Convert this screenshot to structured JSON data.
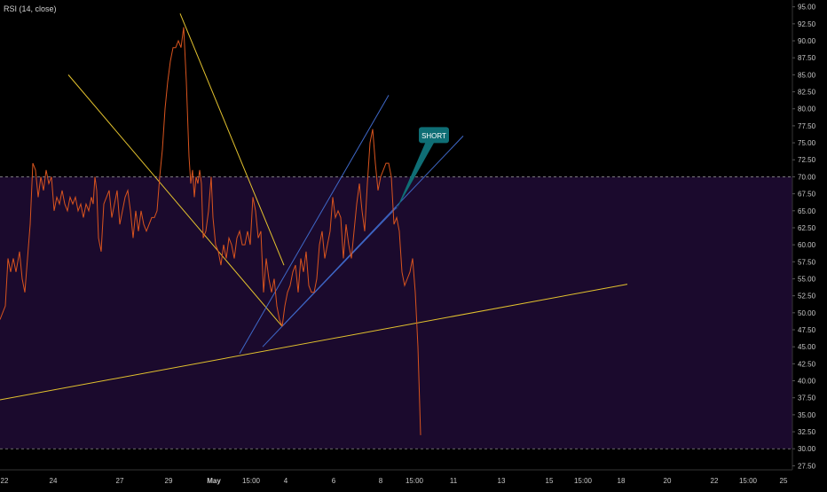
{
  "indicator_label": "RSI (14, close)",
  "annotation_label": "SHORT",
  "colors": {
    "background": "#000000",
    "band_fill": "#1b0a2d",
    "band_line": "#8a8a8a",
    "rsi_line": "#d9541e",
    "yellow_trend": "#e3c22e",
    "blue_trend": "#3f68c8",
    "callout": "#0f6e75",
    "axis_text": "#c8c8c8"
  },
  "chart_data": {
    "type": "line",
    "title": "",
    "xlabel": "",
    "ylabel": "",
    "ylim": [
      26.9,
      96.0
    ],
    "y_ticks": [
      "27.50",
      "30.00",
      "32.50",
      "35.00",
      "37.50",
      "40.00",
      "42.50",
      "45.00",
      "47.50",
      "50.00",
      "52.50",
      "55.00",
      "57.50",
      "60.00",
      "62.50",
      "65.00",
      "67.50",
      "70.00",
      "72.50",
      "75.00",
      "77.50",
      "80.00",
      "82.50",
      "85.00",
      "87.50",
      "90.00",
      "92.50",
      "95.00"
    ],
    "x_range": [
      0,
      932
    ],
    "x_ticks": [
      {
        "x": 5,
        "label": "22"
      },
      {
        "x": 60,
        "label": "24"
      },
      {
        "x": 135,
        "label": "27"
      },
      {
        "x": 190,
        "label": "29"
      },
      {
        "x": 241,
        "label": "May"
      },
      {
        "x": 283,
        "label": "15:00"
      },
      {
        "x": 322,
        "label": "4"
      },
      {
        "x": 376,
        "label": "6"
      },
      {
        "x": 429,
        "label": "8"
      },
      {
        "x": 467,
        "label": "15:00"
      },
      {
        "x": 511,
        "label": "11"
      },
      {
        "x": 565,
        "label": "13"
      },
      {
        "x": 619,
        "label": "15"
      },
      {
        "x": 657,
        "label": "15:00"
      },
      {
        "x": 700,
        "label": "18"
      },
      {
        "x": 752,
        "label": "20"
      },
      {
        "x": 805,
        "label": "22"
      },
      {
        "x": 843,
        "label": "15:00"
      },
      {
        "x": 883,
        "label": "25"
      }
    ],
    "bands": {
      "upper": 70,
      "lower": 30
    },
    "series": [
      {
        "values": [
          [
            0,
            49
          ],
          [
            6,
            51
          ],
          [
            9,
            58
          ],
          [
            12,
            56
          ],
          [
            15,
            58
          ],
          [
            18,
            56
          ],
          [
            22,
            59
          ],
          [
            25,
            55
          ],
          [
            28,
            53
          ],
          [
            31,
            58
          ],
          [
            34,
            63
          ],
          [
            37,
            72
          ],
          [
            40,
            71
          ],
          [
            43,
            67
          ],
          [
            46,
            70
          ],
          [
            49,
            68
          ],
          [
            52,
            71
          ],
          [
            55,
            69
          ],
          [
            58,
            70
          ],
          [
            61,
            65
          ],
          [
            64,
            67
          ],
          [
            67,
            66
          ],
          [
            70,
            68
          ],
          [
            73,
            66
          ],
          [
            76,
            65
          ],
          [
            79,
            67
          ],
          [
            82,
            66
          ],
          [
            85,
            67
          ],
          [
            88,
            65
          ],
          [
            91,
            66
          ],
          [
            94,
            64
          ],
          [
            97,
            66
          ],
          [
            100,
            65
          ],
          [
            103,
            67
          ],
          [
            105,
            66
          ],
          [
            107,
            70
          ],
          [
            109,
            68
          ],
          [
            111,
            61
          ],
          [
            114,
            59
          ],
          [
            117,
            66
          ],
          [
            120,
            67
          ],
          [
            123,
            68
          ],
          [
            126,
            64
          ],
          [
            129,
            66
          ],
          [
            132,
            68
          ],
          [
            135,
            63
          ],
          [
            138,
            65
          ],
          [
            141,
            67
          ],
          [
            144,
            68
          ],
          [
            147,
            65
          ],
          [
            150,
            61
          ],
          [
            153,
            65
          ],
          [
            156,
            62
          ],
          [
            159,
            65
          ],
          [
            162,
            63
          ],
          [
            165,
            62
          ],
          [
            168,
            63
          ],
          [
            171,
            64
          ],
          [
            174,
            64
          ],
          [
            177,
            65
          ],
          [
            180,
            70
          ],
          [
            183,
            74
          ],
          [
            186,
            80
          ],
          [
            189,
            84
          ],
          [
            192,
            87
          ],
          [
            195,
            89
          ],
          [
            198,
            89
          ],
          [
            201,
            90
          ],
          [
            204,
            89
          ],
          [
            207,
            92
          ],
          [
            210,
            84
          ],
          [
            213,
            73
          ],
          [
            215,
            69
          ],
          [
            217,
            71
          ],
          [
            219,
            67
          ],
          [
            221,
            70
          ],
          [
            223,
            69
          ],
          [
            225,
            71
          ],
          [
            227,
            69
          ],
          [
            229,
            61
          ],
          [
            232,
            62
          ],
          [
            235,
            65
          ],
          [
            238,
            70
          ],
          [
            240,
            64
          ],
          [
            243,
            60
          ],
          [
            246,
            59
          ],
          [
            249,
            57
          ],
          [
            252,
            60
          ],
          [
            255,
            58
          ],
          [
            258,
            61
          ],
          [
            261,
            60
          ],
          [
            264,
            58
          ],
          [
            267,
            61
          ],
          [
            270,
            62
          ],
          [
            273,
            60
          ],
          [
            276,
            60
          ],
          [
            279,
            62
          ],
          [
            282,
            60
          ],
          [
            285,
            67
          ],
          [
            288,
            65
          ],
          [
            291,
            61
          ],
          [
            294,
            62
          ],
          [
            297,
            53
          ],
          [
            300,
            58
          ],
          [
            303,
            55
          ],
          [
            306,
            53
          ],
          [
            309,
            55
          ],
          [
            312,
            51
          ],
          [
            315,
            49
          ],
          [
            318,
            48
          ],
          [
            321,
            51
          ],
          [
            324,
            53
          ],
          [
            327,
            54
          ],
          [
            330,
            56
          ],
          [
            333,
            57
          ],
          [
            336,
            53
          ],
          [
            339,
            58
          ],
          [
            342,
            56
          ],
          [
            345,
            59
          ],
          [
            348,
            54
          ],
          [
            351,
            53
          ],
          [
            354,
            53
          ],
          [
            357,
            55
          ],
          [
            360,
            60
          ],
          [
            363,
            62
          ],
          [
            366,
            58
          ],
          [
            369,
            60
          ],
          [
            372,
            62
          ],
          [
            375,
            67
          ],
          [
            378,
            64
          ],
          [
            381,
            65
          ],
          [
            384,
            64
          ],
          [
            387,
            58
          ],
          [
            390,
            63
          ],
          [
            393,
            60
          ],
          [
            396,
            58
          ],
          [
            399,
            62
          ],
          [
            402,
            66
          ],
          [
            405,
            69
          ],
          [
            408,
            65
          ],
          [
            411,
            62
          ],
          [
            414,
            69
          ],
          [
            417,
            75
          ],
          [
            420,
            77
          ],
          [
            423,
            72
          ],
          [
            426,
            68
          ],
          [
            429,
            70
          ],
          [
            432,
            71
          ],
          [
            435,
            72
          ],
          [
            438,
            72
          ],
          [
            441,
            70
          ],
          [
            444,
            63
          ],
          [
            447,
            64
          ],
          [
            450,
            62
          ],
          [
            453,
            56
          ],
          [
            456,
            54
          ],
          [
            459,
            55
          ],
          [
            462,
            56
          ],
          [
            465,
            58
          ],
          [
            468,
            53
          ],
          [
            471,
            45
          ],
          [
            474,
            32
          ]
        ]
      }
    ],
    "trendlines": [
      {
        "color": "yellow",
        "points": [
          [
            77,
            85
          ],
          [
            318,
            48
          ]
        ]
      },
      {
        "color": "yellow",
        "points": [
          [
            203,
            94
          ],
          [
            320,
            57
          ]
        ]
      },
      {
        "color": "yellow",
        "points": [
          [
            0,
            37.2
          ],
          [
            707,
            54.2
          ]
        ]
      },
      {
        "color": "blue",
        "points": [
          [
            270,
            44
          ],
          [
            438,
            82
          ]
        ]
      },
      {
        "color": "blue",
        "points": [
          [
            296,
            45
          ],
          [
            522,
            76
          ]
        ]
      },
      {
        "color": "blue",
        "points": [
          [
            318,
            48
          ],
          [
            447,
            65.5
          ]
        ]
      }
    ],
    "annotation": {
      "label": "SHORT",
      "at": [
        446,
        65
      ],
      "text_at": [
        488,
        76
      ]
    }
  }
}
